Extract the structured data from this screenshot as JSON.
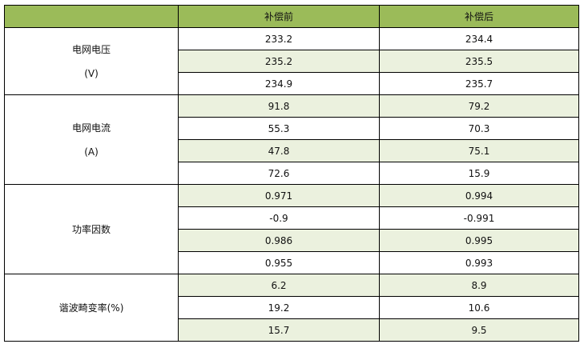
{
  "header": [
    "",
    "补偿前",
    "补偿后"
  ],
  "groups": [
    {
      "label": "电网电压",
      "unit": "(V)",
      "rows": [
        [
          "233.2",
          "234.4"
        ],
        [
          "235.2",
          "235.5"
        ],
        [
          "234.9",
          "235.7"
        ]
      ]
    },
    {
      "label": "电网电流",
      "unit": "(A)",
      "rows": [
        [
          "91.8",
          "79.2"
        ],
        [
          "55.3",
          "70.3"
        ],
        [
          "47.8",
          "75.1"
        ],
        [
          "72.6",
          "15.9"
        ]
      ]
    },
    {
      "label": "功率因数",
      "unit": "",
      "rows": [
        [
          "0.971",
          "0.994"
        ],
        [
          "-0.9",
          "-0.991"
        ],
        [
          "0.986",
          "0.995"
        ],
        [
          "0.955",
          "0.993"
        ]
      ]
    },
    {
      "label": "谐波畸变率(%)",
      "unit": "",
      "rows": [
        [
          "6.2",
          "8.9"
        ],
        [
          "19.2",
          "10.6"
        ],
        [
          "15.7",
          "9.5"
        ]
      ]
    }
  ],
  "colors": {
    "header": "#9bbb59",
    "shade": "#ebf1de"
  }
}
